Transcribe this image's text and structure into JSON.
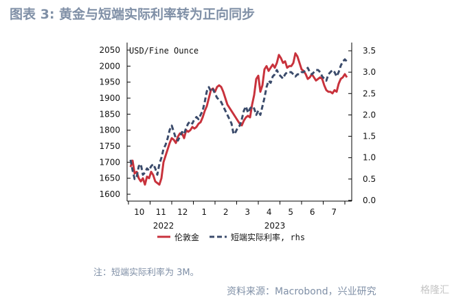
{
  "title": "图表 3:  黄金与短端实际利率转为正向同步",
  "note": "注：短端实际利率为 3M。",
  "source": "资料来源：Macrobond，兴业研究",
  "watermark": "格隆汇",
  "chart_data": {
    "type": "line",
    "unit_label": "USD/Fine Ounce",
    "y_left": {
      "min": 1600,
      "max": 2050,
      "ticks": [
        1600,
        1650,
        1700,
        1750,
        1800,
        1850,
        1900,
        1950,
        2000,
        2050
      ]
    },
    "y_right": {
      "min": 0.0,
      "max": 3.5,
      "ticks": [
        "0.0",
        "0.5",
        "1.0",
        "1.5",
        "2.0",
        "2.5",
        "3.0",
        "3.5"
      ]
    },
    "x_months": [
      "10",
      "11",
      "12",
      "1",
      "2",
      "3",
      "4",
      "5",
      "6",
      "7"
    ],
    "x_years": [
      "2022",
      "2023"
    ],
    "legend": [
      "伦敦金",
      "短端实际利率, rhs"
    ],
    "grid": false,
    "legend_position": "bottom",
    "series": [
      {
        "name": "伦敦金",
        "axis": "left",
        "color": "#c8323c",
        "style": "solid",
        "points": [
          [
            0,
            1685
          ],
          [
            1,
            1705
          ],
          [
            2,
            1665
          ],
          [
            3,
            1670
          ],
          [
            4,
            1650
          ],
          [
            5,
            1640
          ],
          [
            6,
            1650
          ],
          [
            7,
            1630
          ],
          [
            8,
            1655
          ],
          [
            9,
            1650
          ],
          [
            10,
            1670
          ],
          [
            11,
            1660
          ],
          [
            12,
            1640
          ],
          [
            13,
            1635
          ],
          [
            14,
            1630
          ],
          [
            15,
            1650
          ],
          [
            16,
            1700
          ],
          [
            17,
            1720
          ],
          [
            18,
            1740
          ],
          [
            19,
            1760
          ],
          [
            20,
            1775
          ],
          [
            21,
            1770
          ],
          [
            22,
            1760
          ],
          [
            23,
            1780
          ],
          [
            24,
            1790
          ],
          [
            25,
            1790
          ],
          [
            26,
            1775
          ],
          [
            27,
            1800
          ],
          [
            28,
            1795
          ],
          [
            29,
            1800
          ],
          [
            30,
            1810
          ],
          [
            31,
            1805
          ],
          [
            32,
            1810
          ],
          [
            33,
            1820
          ],
          [
            34,
            1825
          ],
          [
            35,
            1840
          ],
          [
            36,
            1860
          ],
          [
            37,
            1875
          ],
          [
            38,
            1900
          ],
          [
            39,
            1925
          ],
          [
            40,
            1930
          ],
          [
            41,
            1920
          ],
          [
            42,
            1935
          ],
          [
            43,
            1940
          ],
          [
            44,
            1935
          ],
          [
            45,
            1920
          ],
          [
            46,
            1900
          ],
          [
            47,
            1880
          ],
          [
            48,
            1870
          ],
          [
            49,
            1860
          ],
          [
            50,
            1850
          ],
          [
            51,
            1840
          ],
          [
            52,
            1830
          ],
          [
            53,
            1820
          ],
          [
            54,
            1815
          ],
          [
            55,
            1830
          ],
          [
            56,
            1840
          ],
          [
            57,
            1845
          ],
          [
            58,
            1840
          ],
          [
            59,
            1880
          ],
          [
            60,
            1910
          ],
          [
            61,
            1960
          ],
          [
            62,
            1970
          ],
          [
            63,
            1920
          ],
          [
            64,
            1940
          ],
          [
            65,
            1990
          ],
          [
            66,
            2000
          ],
          [
            67,
            1985
          ],
          [
            68,
            1995
          ],
          [
            69,
            2005
          ],
          [
            70,
            1995
          ],
          [
            71,
            2010
          ],
          [
            72,
            2035
          ],
          [
            73,
            2025
          ],
          [
            74,
            2010
          ],
          [
            75,
            2015
          ],
          [
            76,
            1995
          ],
          [
            77,
            2000
          ],
          [
            78,
            2000
          ],
          [
            79,
            2010
          ],
          [
            80,
            2040
          ],
          [
            81,
            2030
          ],
          [
            82,
            2010
          ],
          [
            83,
            1990
          ],
          [
            84,
            1985
          ],
          [
            85,
            1975
          ],
          [
            86,
            1960
          ],
          [
            87,
            1965
          ],
          [
            88,
            1975
          ],
          [
            89,
            1965
          ],
          [
            90,
            1955
          ],
          [
            91,
            1960
          ],
          [
            92,
            1965
          ],
          [
            93,
            1960
          ],
          [
            94,
            1940
          ],
          [
            95,
            1925
          ],
          [
            96,
            1920
          ],
          [
            97,
            1920
          ],
          [
            98,
            1915
          ],
          [
            99,
            1925
          ],
          [
            100,
            1920
          ],
          [
            101,
            1945
          ],
          [
            102,
            1960
          ],
          [
            103,
            1965
          ],
          [
            104,
            1975
          ],
          [
            105,
            1965
          ]
        ]
      },
      {
        "name": "短端实际利率, rhs",
        "axis": "right",
        "color": "#3b4b6b",
        "style": "dashed",
        "points": [
          [
            0,
            0.95
          ],
          [
            1,
            0.7
          ],
          [
            2,
            0.5
          ],
          [
            3,
            0.55
          ],
          [
            4,
            0.8
          ],
          [
            5,
            0.85
          ],
          [
            6,
            0.6
          ],
          [
            7,
            0.65
          ],
          [
            8,
            0.75
          ],
          [
            9,
            0.7
          ],
          [
            10,
            0.8
          ],
          [
            11,
            0.85
          ],
          [
            12,
            0.75
          ],
          [
            13,
            0.6
          ],
          [
            14,
            0.85
          ],
          [
            15,
            1.0
          ],
          [
            16,
            1.2
          ],
          [
            17,
            1.3
          ],
          [
            18,
            1.45
          ],
          [
            19,
            1.65
          ],
          [
            20,
            1.75
          ],
          [
            21,
            1.6
          ],
          [
            22,
            1.45
          ],
          [
            23,
            1.4
          ],
          [
            24,
            1.5
          ],
          [
            25,
            1.6
          ],
          [
            26,
            1.55
          ],
          [
            27,
            1.7
          ],
          [
            28,
            1.8
          ],
          [
            29,
            1.85
          ],
          [
            30,
            1.8
          ],
          [
            31,
            1.9
          ],
          [
            32,
            1.95
          ],
          [
            33,
            1.9
          ],
          [
            34,
            2.0
          ],
          [
            35,
            2.1
          ],
          [
            36,
            2.3
          ],
          [
            37,
            2.55
          ],
          [
            38,
            2.65
          ],
          [
            39,
            2.55
          ],
          [
            40,
            2.6
          ],
          [
            41,
            2.5
          ],
          [
            42,
            2.4
          ],
          [
            43,
            2.35
          ],
          [
            44,
            2.3
          ],
          [
            45,
            2.2
          ],
          [
            46,
            2.1
          ],
          [
            47,
            2.0
          ],
          [
            48,
            1.9
          ],
          [
            49,
            1.8
          ],
          [
            50,
            1.55
          ],
          [
            51,
            1.6
          ],
          [
            52,
            1.7
          ],
          [
            53,
            1.75
          ],
          [
            54,
            1.9
          ],
          [
            55,
            2.1
          ],
          [
            56,
            2.2
          ],
          [
            57,
            2.05
          ],
          [
            58,
            2.15
          ],
          [
            59,
            2.2
          ],
          [
            60,
            2.15
          ],
          [
            61,
            2.0
          ],
          [
            62,
            2.1
          ],
          [
            63,
            2.0
          ],
          [
            64,
            2.2
          ],
          [
            65,
            2.4
          ],
          [
            66,
            2.65
          ],
          [
            67,
            2.8
          ],
          [
            68,
            2.75
          ],
          [
            69,
            2.9
          ],
          [
            70,
            2.95
          ],
          [
            71,
            3.05
          ],
          [
            72,
            2.95
          ],
          [
            73,
            2.9
          ],
          [
            74,
            2.85
          ],
          [
            75,
            2.95
          ],
          [
            76,
            3.0
          ],
          [
            77,
            3.0
          ],
          [
            78,
            3.0
          ],
          [
            79,
            2.95
          ],
          [
            80,
            2.9
          ],
          [
            81,
            2.95
          ],
          [
            82,
            2.95
          ],
          [
            83,
            3.0
          ],
          [
            84,
            3.0
          ],
          [
            85,
            3.05
          ],
          [
            86,
            3.1
          ],
          [
            87,
            3.0
          ],
          [
            88,
            2.95
          ],
          [
            89,
            3.0
          ],
          [
            90,
            3.05
          ],
          [
            91,
            3.05
          ],
          [
            92,
            3.0
          ],
          [
            93,
            2.9
          ],
          [
            94,
            2.85
          ],
          [
            95,
            2.8
          ],
          [
            96,
            2.95
          ],
          [
            97,
            3.0
          ],
          [
            98,
            3.05
          ],
          [
            99,
            3.0
          ],
          [
            100,
            2.9
          ],
          [
            101,
            3.0
          ],
          [
            102,
            3.15
          ],
          [
            103,
            3.25
          ],
          [
            104,
            3.3
          ],
          [
            105,
            3.25
          ]
        ]
      }
    ]
  }
}
